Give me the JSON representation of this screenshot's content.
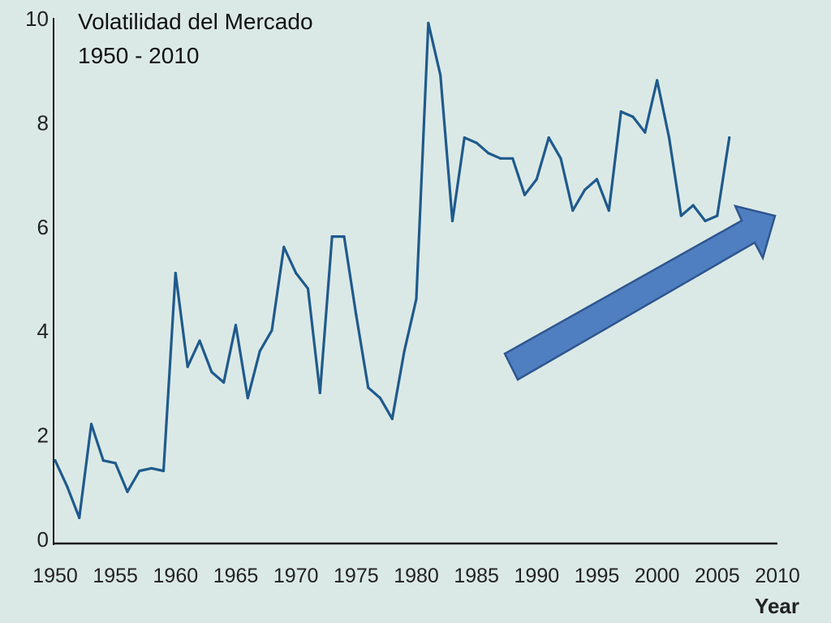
{
  "chart_data": {
    "type": "line",
    "title_lines": [
      "Volatilidad del Mercado",
      "1950 - 2010"
    ],
    "xlabel": "Year",
    "ylabel": "",
    "xlim": [
      1950,
      2010
    ],
    "ylim": [
      0,
      10
    ],
    "x_ticks": [
      1950,
      1955,
      1960,
      1965,
      1970,
      1975,
      1980,
      1985,
      1990,
      1995,
      2000,
      2005,
      2010
    ],
    "y_ticks": [
      0,
      2,
      4,
      6,
      8,
      10
    ],
    "grid": false,
    "legend": "none",
    "colors": {
      "line": "#1f5a8c",
      "arrow_fill": "#4f7fc0",
      "arrow_stroke": "#2e568f",
      "axis": "#1b1b1b",
      "background": "#dbe9e6"
    },
    "annotation": "upward-trend-arrow",
    "series": [
      {
        "x": [
          1950,
          1951,
          1952,
          1953,
          1954,
          1955,
          1956,
          1957,
          1958,
          1959,
          1960,
          1961,
          1962,
          1963,
          1964,
          1965,
          1966,
          1967,
          1968,
          1969,
          1970,
          1971,
          1972,
          1973,
          1974,
          1975,
          1976,
          1977,
          1978,
          1979,
          1980,
          1981,
          1982,
          1983,
          1984,
          1985,
          1986,
          1987,
          1988,
          1989,
          1990,
          1991,
          1992,
          1993,
          1994,
          1995,
          1996,
          1997,
          1998,
          1999,
          2000,
          2001,
          2002,
          2003,
          2004,
          2005,
          2006
        ],
        "y": [
          1.5,
          1.0,
          0.4,
          2.2,
          1.5,
          1.45,
          0.9,
          1.3,
          1.35,
          1.3,
          5.1,
          3.3,
          3.8,
          3.2,
          3.0,
          4.1,
          2.7,
          3.6,
          4.0,
          5.6,
          5.1,
          4.8,
          2.8,
          5.8,
          5.8,
          4.3,
          2.9,
          2.7,
          2.3,
          3.6,
          4.6,
          9.9,
          8.9,
          6.1,
          7.7,
          7.6,
          7.4,
          7.3,
          7.3,
          6.6,
          6.9,
          7.7,
          7.3,
          6.3,
          6.7,
          6.9,
          6.3,
          8.2,
          8.1,
          7.8,
          8.8,
          7.7,
          6.2,
          6.4,
          6.1,
          6.2,
          7.7
        ]
      }
    ]
  }
}
